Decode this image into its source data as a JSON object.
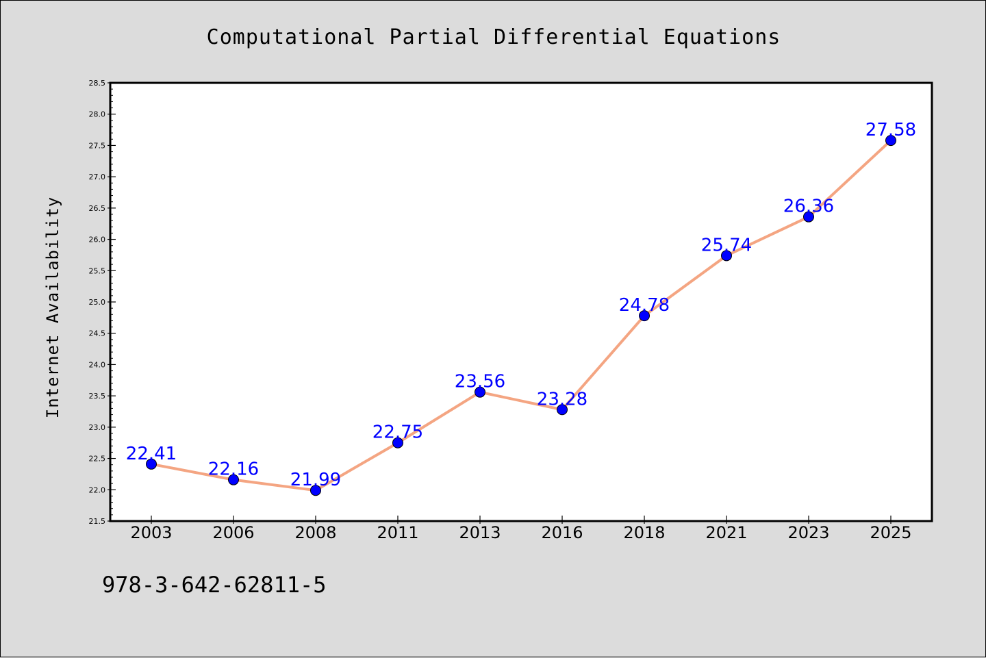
{
  "chart_data": {
    "type": "line",
    "title": "Computational Partial Differential Equations",
    "xlabel": "",
    "ylabel": "Internet Availability",
    "categories": [
      "2003",
      "2006",
      "2008",
      "2011",
      "2013",
      "2016",
      "2018",
      "2021",
      "2023",
      "2025"
    ],
    "values": [
      22.41,
      22.16,
      21.99,
      22.75,
      23.56,
      23.28,
      24.78,
      25.74,
      26.36,
      27.58
    ],
    "data_labels": [
      "22.41",
      "22.16",
      "21.99",
      "22.75",
      "23.56",
      "23.28",
      "24.78",
      "25.74",
      "26.36",
      "27.58"
    ],
    "ylim": [
      21.5,
      28.5
    ],
    "yticks": [
      "21.5",
      "22.0",
      "22.5",
      "23.0",
      "23.5",
      "24.0",
      "24.5",
      "25.0",
      "25.5",
      "26.0",
      "26.5",
      "27.0",
      "27.5",
      "28.0",
      "28.5"
    ],
    "ytick_values": [
      21.5,
      22.0,
      22.5,
      23.0,
      23.5,
      24.0,
      24.5,
      25.0,
      25.5,
      26.0,
      26.5,
      27.0,
      27.5,
      28.0,
      28.5
    ],
    "grid": false,
    "line_color": "#f4a582",
    "marker_color": "#0000ff",
    "label_color": "#0000ff",
    "background_color": "#dcdcdc",
    "plot_background_color": "#ffffff"
  },
  "footer": {
    "isbn": "978-3-642-62811-5"
  }
}
